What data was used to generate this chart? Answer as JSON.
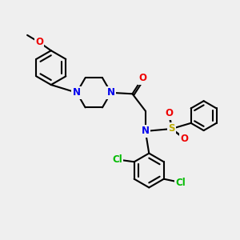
{
  "background_color": "#efefef",
  "bond_color": "#000000",
  "atom_colors": {
    "N": "#0000ee",
    "O": "#ee0000",
    "S": "#bbaa00",
    "Cl": "#00bb00",
    "C": "#000000"
  },
  "font_size_atom": 8.5,
  "fig_width": 3.0,
  "fig_height": 3.0,
  "dpi": 100
}
